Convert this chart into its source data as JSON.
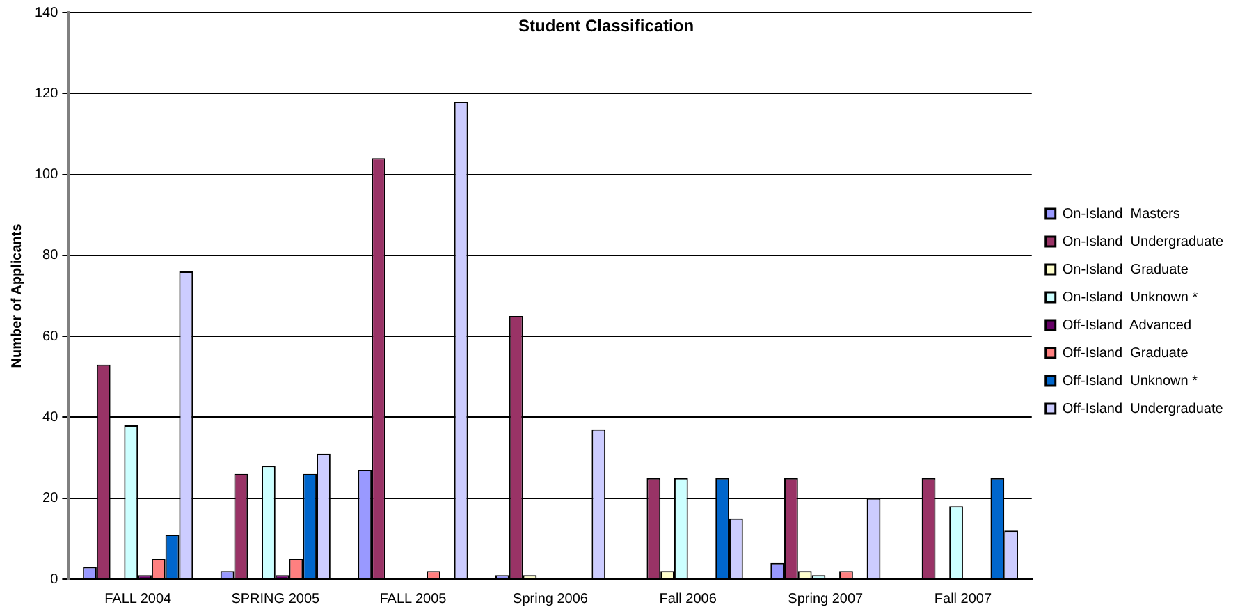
{
  "chart_data": {
    "type": "bar",
    "title": "Student Classification",
    "ylabel": "Number of Applicants",
    "categories": [
      "FALL 2004",
      "SPRING 2005",
      "FALL 2005",
      "Spring 2006",
      "Fall 2006",
      "Spring 2007",
      "Fall 2007"
    ],
    "series": [
      {
        "name": "On-Island  Masters",
        "color": "#9999ff",
        "values": [
          3,
          2,
          27,
          1,
          null,
          4,
          null
        ]
      },
      {
        "name": "On-Island  Undergraduate",
        "color": "#993366",
        "values": [
          53,
          26,
          104,
          65,
          25,
          25,
          25
        ]
      },
      {
        "name": "On-Island  Graduate",
        "color": "#ffffcc",
        "values": [
          null,
          null,
          null,
          1,
          2,
          2,
          null
        ]
      },
      {
        "name": "On-Island  Unknown *",
        "color": "#ccffff",
        "values": [
          38,
          28,
          null,
          null,
          25,
          1,
          18
        ]
      },
      {
        "name": "Off-Island  Advanced",
        "color": "#660066",
        "values": [
          1,
          1,
          null,
          null,
          null,
          null,
          null
        ]
      },
      {
        "name": "Off-Island  Graduate",
        "color": "#ff8080",
        "values": [
          5,
          5,
          2,
          null,
          null,
          2,
          null
        ]
      },
      {
        "name": "Off-Island  Unknown *",
        "color": "#0066cc",
        "values": [
          11,
          26,
          null,
          null,
          25,
          null,
          25
        ]
      },
      {
        "name": "Off-Island  Undergraduate",
        "color": "#ccccff",
        "values": [
          76,
          31,
          118,
          37,
          15,
          20,
          12
        ]
      }
    ],
    "ylim": [
      0,
      140
    ],
    "yticks": [
      0,
      20,
      40,
      60,
      80,
      100,
      120,
      140
    ],
    "grid": "y",
    "legend": "right"
  }
}
